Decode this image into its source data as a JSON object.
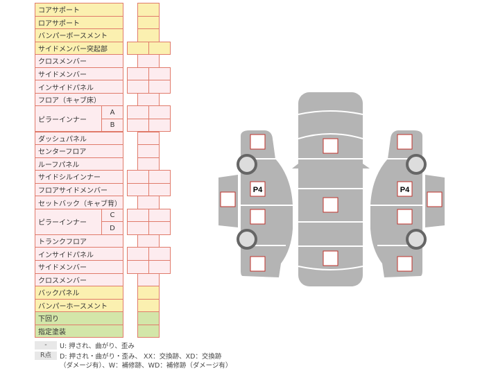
{
  "colors": {
    "yellow": "#fbf0b0",
    "pink": "#fdecef",
    "green": "#d3e6a9",
    "border": "#e07a6a",
    "car": "#b4b4b4",
    "box_border": "#c0302a"
  },
  "rows": [
    {
      "label": "コアサポート",
      "color": "y",
      "cols": 1
    },
    {
      "label": "ロアサポート",
      "color": "y",
      "cols": 1
    },
    {
      "label": "バンパーボースメント",
      "color": "y",
      "cols": 1
    },
    {
      "label": "サイドメンバー突起部",
      "color": "y",
      "cols": 2
    },
    {
      "label": "クロスメンバー",
      "color": "p",
      "cols": 1
    },
    {
      "label": "サイドメンバー",
      "color": "p",
      "cols": 2
    },
    {
      "label": "インサイドパネル",
      "color": "p",
      "cols": 2
    },
    {
      "label": "フロア（キャブ床）",
      "color": "p",
      "cols": 1
    },
    {
      "label": "ピラーインナー",
      "color": "p",
      "cols": 2,
      "subs": [
        "A",
        "B"
      ]
    },
    {
      "label": "ダッシュパネル",
      "color": "p",
      "cols": 1
    },
    {
      "label": "センターフロア",
      "color": "p",
      "cols": 1
    },
    {
      "label": "ルーフパネル",
      "color": "p",
      "cols": 1
    },
    {
      "label": "サイドシルインナー",
      "color": "p",
      "cols": 2
    },
    {
      "label": "フロアサイドメンバー",
      "color": "p",
      "cols": 2
    },
    {
      "label": "セットバック（キャブ背）",
      "color": "p",
      "cols": 1
    },
    {
      "label": "ピラーインナー",
      "color": "p",
      "cols": 2,
      "subs": [
        "C",
        "D"
      ]
    },
    {
      "label": "トランクフロア",
      "color": "p",
      "cols": 1
    },
    {
      "label": "インサイドパネル",
      "color": "p",
      "cols": 2
    },
    {
      "label": "サイドメンバー",
      "color": "p",
      "cols": 2
    },
    {
      "label": "クロスメンバー",
      "color": "p",
      "cols": 1
    },
    {
      "label": "バックパネル",
      "color": "y",
      "cols": 1
    },
    {
      "label": "バンパーホースメント",
      "color": "y",
      "cols": 1
    },
    {
      "label": "下回り",
      "color": "g",
      "cols": 1
    },
    {
      "label": "指定塗装",
      "color": "g",
      "cols": 1
    }
  ],
  "legend": [
    {
      "key": "-",
      "text": "U: 押され、曲がり、歪み"
    },
    {
      "key": "R点",
      "text": "D: 押され・曲がり・歪み、 XX：交換跡、XD：交換跡",
      "text2": "（ダメージ有）、W：補修跡、WD：補修跡（ダメージ有）"
    }
  ],
  "diagram": {
    "left_marker": "P4",
    "right_marker": "P4"
  }
}
